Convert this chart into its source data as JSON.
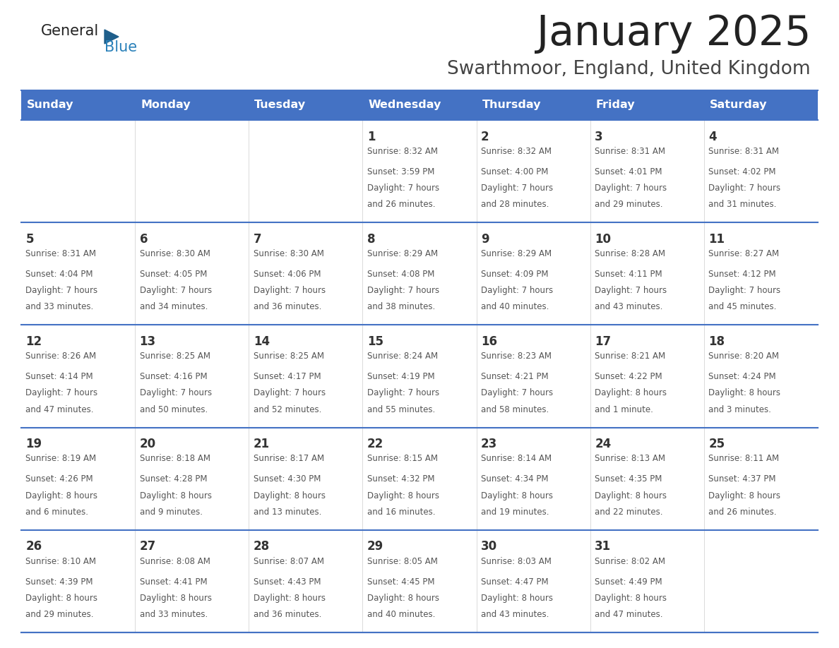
{
  "title": "January 2025",
  "subtitle": "Swarthmoor, England, United Kingdom",
  "days_of_week": [
    "Sunday",
    "Monday",
    "Tuesday",
    "Wednesday",
    "Thursday",
    "Friday",
    "Saturday"
  ],
  "header_bg": "#4472C4",
  "header_text_color": "#FFFFFF",
  "cell_bg_light": "#FFFFFF",
  "cell_bg_alt": "#F2F2F2",
  "grid_line_color": "#4472C4",
  "day_number_color": "#333333",
  "cell_text_color": "#555555",
  "title_color": "#222222",
  "subtitle_color": "#444444",
  "logo_general_color": "#222222",
  "logo_blue_color": "#2980B9",
  "logo_triangle_color": "#1F5F8B",
  "weeks": [
    [
      {
        "day": null,
        "sunrise": null,
        "sunset": null,
        "daylight": null
      },
      {
        "day": null,
        "sunrise": null,
        "sunset": null,
        "daylight": null
      },
      {
        "day": null,
        "sunrise": null,
        "sunset": null,
        "daylight": null
      },
      {
        "day": 1,
        "sunrise": "8:32 AM",
        "sunset": "3:59 PM",
        "daylight": "7 hours\nand 26 minutes."
      },
      {
        "day": 2,
        "sunrise": "8:32 AM",
        "sunset": "4:00 PM",
        "daylight": "7 hours\nand 28 minutes."
      },
      {
        "day": 3,
        "sunrise": "8:31 AM",
        "sunset": "4:01 PM",
        "daylight": "7 hours\nand 29 minutes."
      },
      {
        "day": 4,
        "sunrise": "8:31 AM",
        "sunset": "4:02 PM",
        "daylight": "7 hours\nand 31 minutes."
      }
    ],
    [
      {
        "day": 5,
        "sunrise": "8:31 AM",
        "sunset": "4:04 PM",
        "daylight": "7 hours\nand 33 minutes."
      },
      {
        "day": 6,
        "sunrise": "8:30 AM",
        "sunset": "4:05 PM",
        "daylight": "7 hours\nand 34 minutes."
      },
      {
        "day": 7,
        "sunrise": "8:30 AM",
        "sunset": "4:06 PM",
        "daylight": "7 hours\nand 36 minutes."
      },
      {
        "day": 8,
        "sunrise": "8:29 AM",
        "sunset": "4:08 PM",
        "daylight": "7 hours\nand 38 minutes."
      },
      {
        "day": 9,
        "sunrise": "8:29 AM",
        "sunset": "4:09 PM",
        "daylight": "7 hours\nand 40 minutes."
      },
      {
        "day": 10,
        "sunrise": "8:28 AM",
        "sunset": "4:11 PM",
        "daylight": "7 hours\nand 43 minutes."
      },
      {
        "day": 11,
        "sunrise": "8:27 AM",
        "sunset": "4:12 PM",
        "daylight": "7 hours\nand 45 minutes."
      }
    ],
    [
      {
        "day": 12,
        "sunrise": "8:26 AM",
        "sunset": "4:14 PM",
        "daylight": "7 hours\nand 47 minutes."
      },
      {
        "day": 13,
        "sunrise": "8:25 AM",
        "sunset": "4:16 PM",
        "daylight": "7 hours\nand 50 minutes."
      },
      {
        "day": 14,
        "sunrise": "8:25 AM",
        "sunset": "4:17 PM",
        "daylight": "7 hours\nand 52 minutes."
      },
      {
        "day": 15,
        "sunrise": "8:24 AM",
        "sunset": "4:19 PM",
        "daylight": "7 hours\nand 55 minutes."
      },
      {
        "day": 16,
        "sunrise": "8:23 AM",
        "sunset": "4:21 PM",
        "daylight": "7 hours\nand 58 minutes."
      },
      {
        "day": 17,
        "sunrise": "8:21 AM",
        "sunset": "4:22 PM",
        "daylight": "8 hours\nand 1 minute."
      },
      {
        "day": 18,
        "sunrise": "8:20 AM",
        "sunset": "4:24 PM",
        "daylight": "8 hours\nand 3 minutes."
      }
    ],
    [
      {
        "day": 19,
        "sunrise": "8:19 AM",
        "sunset": "4:26 PM",
        "daylight": "8 hours\nand 6 minutes."
      },
      {
        "day": 20,
        "sunrise": "8:18 AM",
        "sunset": "4:28 PM",
        "daylight": "8 hours\nand 9 minutes."
      },
      {
        "day": 21,
        "sunrise": "8:17 AM",
        "sunset": "4:30 PM",
        "daylight": "8 hours\nand 13 minutes."
      },
      {
        "day": 22,
        "sunrise": "8:15 AM",
        "sunset": "4:32 PM",
        "daylight": "8 hours\nand 16 minutes."
      },
      {
        "day": 23,
        "sunrise": "8:14 AM",
        "sunset": "4:34 PM",
        "daylight": "8 hours\nand 19 minutes."
      },
      {
        "day": 24,
        "sunrise": "8:13 AM",
        "sunset": "4:35 PM",
        "daylight": "8 hours\nand 22 minutes."
      },
      {
        "day": 25,
        "sunrise": "8:11 AM",
        "sunset": "4:37 PM",
        "daylight": "8 hours\nand 26 minutes."
      }
    ],
    [
      {
        "day": 26,
        "sunrise": "8:10 AM",
        "sunset": "4:39 PM",
        "daylight": "8 hours\nand 29 minutes."
      },
      {
        "day": 27,
        "sunrise": "8:08 AM",
        "sunset": "4:41 PM",
        "daylight": "8 hours\nand 33 minutes."
      },
      {
        "day": 28,
        "sunrise": "8:07 AM",
        "sunset": "4:43 PM",
        "daylight": "8 hours\nand 36 minutes."
      },
      {
        "day": 29,
        "sunrise": "8:05 AM",
        "sunset": "4:45 PM",
        "daylight": "8 hours\nand 40 minutes."
      },
      {
        "day": 30,
        "sunrise": "8:03 AM",
        "sunset": "4:47 PM",
        "daylight": "8 hours\nand 43 minutes."
      },
      {
        "day": 31,
        "sunrise": "8:02 AM",
        "sunset": "4:49 PM",
        "daylight": "8 hours\nand 47 minutes."
      },
      {
        "day": null,
        "sunrise": null,
        "sunset": null,
        "daylight": null
      }
    ]
  ]
}
